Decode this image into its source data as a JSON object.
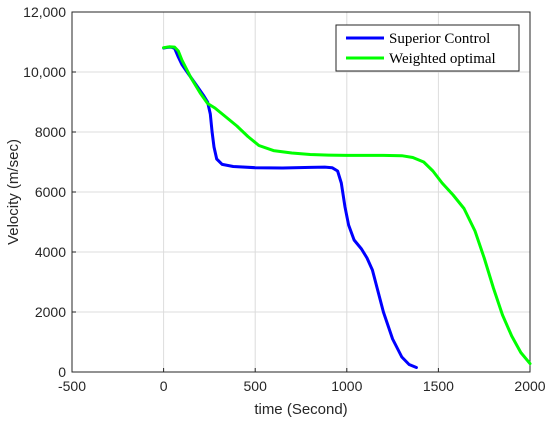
{
  "chart_data": {
    "type": "line",
    "xlabel": "time (Second)",
    "ylabel": "Velocity (m/sec)",
    "xlim": [
      -500,
      2000
    ],
    "ylim": [
      0,
      12000
    ],
    "x_ticks": [
      -500,
      0,
      500,
      1000,
      1500,
      2000
    ],
    "x_tick_labels": [
      "-500",
      "0",
      "500",
      "1000",
      "1500",
      "2000"
    ],
    "y_ticks": [
      0,
      2000,
      4000,
      6000,
      8000,
      10000,
      12000
    ],
    "y_tick_labels": [
      "0",
      "2000",
      "4000",
      "6000",
      "8000",
      "10,000",
      "12,000"
    ],
    "grid": true,
    "legend_position": "top-right",
    "series": [
      {
        "name": "Superior Control",
        "color": "#0000ff",
        "points": [
          [
            0,
            10800
          ],
          [
            20,
            10820
          ],
          [
            40,
            10830
          ],
          [
            60,
            10790
          ],
          [
            80,
            10500
          ],
          [
            100,
            10250
          ],
          [
            140,
            9900
          ],
          [
            180,
            9550
          ],
          [
            220,
            9200
          ],
          [
            240,
            9000
          ],
          [
            255,
            8600
          ],
          [
            265,
            8000
          ],
          [
            275,
            7500
          ],
          [
            290,
            7100
          ],
          [
            320,
            6920
          ],
          [
            380,
            6850
          ],
          [
            500,
            6810
          ],
          [
            650,
            6800
          ],
          [
            800,
            6820
          ],
          [
            880,
            6830
          ],
          [
            920,
            6810
          ],
          [
            950,
            6700
          ],
          [
            970,
            6300
          ],
          [
            990,
            5500
          ],
          [
            1010,
            4900
          ],
          [
            1040,
            4400
          ],
          [
            1080,
            4100
          ],
          [
            1110,
            3800
          ],
          [
            1140,
            3400
          ],
          [
            1170,
            2700
          ],
          [
            1200,
            2000
          ],
          [
            1250,
            1100
          ],
          [
            1300,
            500
          ],
          [
            1340,
            250
          ],
          [
            1380,
            150
          ]
        ]
      },
      {
        "name": "Weighted optimal",
        "color": "#00ff00",
        "points": [
          [
            0,
            10810
          ],
          [
            30,
            10840
          ],
          [
            60,
            10830
          ],
          [
            80,
            10700
          ],
          [
            100,
            10400
          ],
          [
            150,
            9800
          ],
          [
            200,
            9300
          ],
          [
            240,
            8950
          ],
          [
            280,
            8800
          ],
          [
            330,
            8550
          ],
          [
            400,
            8200
          ],
          [
            460,
            7850
          ],
          [
            520,
            7550
          ],
          [
            600,
            7380
          ],
          [
            700,
            7300
          ],
          [
            800,
            7250
          ],
          [
            900,
            7230
          ],
          [
            1000,
            7220
          ],
          [
            1100,
            7220
          ],
          [
            1200,
            7220
          ],
          [
            1300,
            7210
          ],
          [
            1360,
            7150
          ],
          [
            1420,
            7000
          ],
          [
            1470,
            6700
          ],
          [
            1520,
            6300
          ],
          [
            1580,
            5900
          ],
          [
            1640,
            5450
          ],
          [
            1700,
            4700
          ],
          [
            1750,
            3800
          ],
          [
            1800,
            2800
          ],
          [
            1850,
            1900
          ],
          [
            1900,
            1200
          ],
          [
            1950,
            650
          ],
          [
            2000,
            280
          ]
        ]
      }
    ]
  }
}
